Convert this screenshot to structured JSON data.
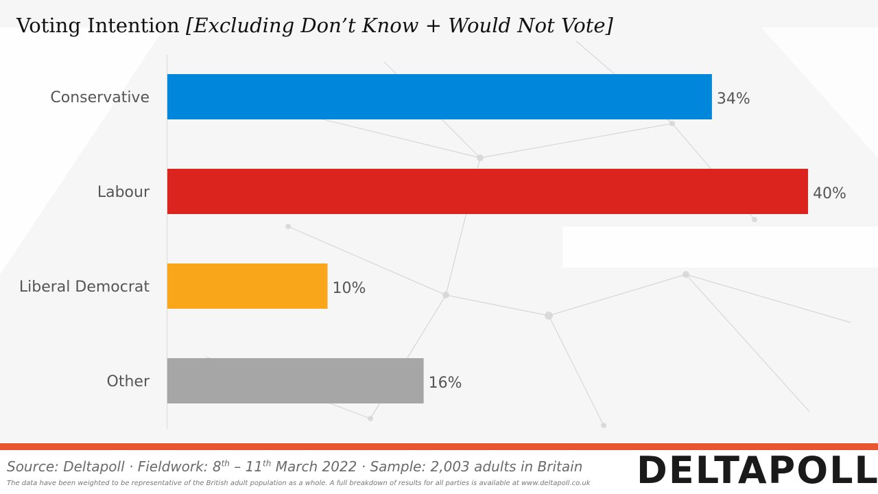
{
  "title": {
    "main": "Voting Intention",
    "subtitle": "[Excluding Don’t Know + Would Not Vote]"
  },
  "chart_data": {
    "type": "bar",
    "orientation": "horizontal",
    "categories": [
      "Conservative",
      "Labour",
      "Liberal Democrat",
      "Other"
    ],
    "values": [
      34,
      40,
      10,
      16
    ],
    "value_labels": [
      "34%",
      "40%",
      "10%",
      "16%"
    ],
    "colors": [
      "#0087dc",
      "#dc241f",
      "#faa61a",
      "#a6a6a6"
    ],
    "unit": "%",
    "xlim": [
      0,
      40
    ],
    "title": "Voting Intention [Excluding Don’t Know + Would Not Vote]",
    "xlabel": "",
    "ylabel": "",
    "grid": false,
    "legend": "none"
  },
  "footer": {
    "source_prefix": "Source: Deltapoll · Fieldwork: ",
    "day_start": "8",
    "day_start_suffix": "th",
    "date_sep": " – ",
    "day_end": "11",
    "day_end_suffix": "th",
    "source_suffix": " March 2022 · Sample: 2,003 adults in Britain",
    "disclaimer": "The data have been weighted to be representative of the British adult population as a whole. A full breakdown of results for all parties is available at www.deltapoll.co.uk",
    "logo": "DELTAPOLL"
  }
}
